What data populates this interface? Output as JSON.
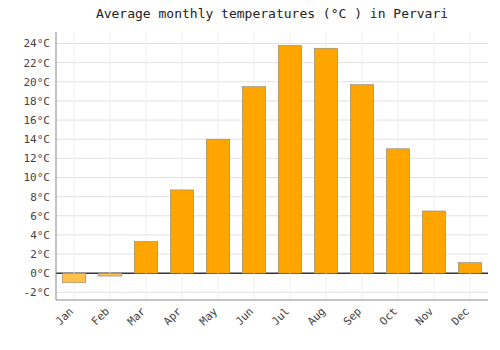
{
  "chart_data": {
    "type": "bar",
    "title": "Average monthly temperatures (°C ) in Pervari",
    "categories": [
      "Jan",
      "Feb",
      "Mar",
      "Apr",
      "May",
      "Jun",
      "Jul",
      "Aug",
      "Sep",
      "Oct",
      "Nov",
      "Dec"
    ],
    "values": [
      -1.0,
      -0.3,
      3.3,
      8.7,
      14.0,
      19.5,
      23.8,
      23.5,
      19.7,
      13.0,
      6.5,
      1.1
    ],
    "colors": [
      "#FFC04C",
      "#FFC04C",
      "#FFA500",
      "#FFA500",
      "#FFA500",
      "#FFA500",
      "#FFA500",
      "#FFA500",
      "#FFA500",
      "#FFA500",
      "#FFA500",
      "#FFA500"
    ],
    "ylim": [
      -2.8,
      25.2
    ],
    "yticks": [
      {
        "value": -2,
        "label": "-2°C"
      },
      {
        "value": 0,
        "label": "0°C"
      },
      {
        "value": 2,
        "label": "2°C"
      },
      {
        "value": 4,
        "label": "4°C"
      },
      {
        "value": 6,
        "label": "6°C"
      },
      {
        "value": 8,
        "label": "8°C"
      },
      {
        "value": 10,
        "label": "10°C"
      },
      {
        "value": 12,
        "label": "12°C"
      },
      {
        "value": 14,
        "label": "14°C"
      },
      {
        "value": 16,
        "label": "16°C"
      },
      {
        "value": 18,
        "label": "18°C"
      },
      {
        "value": 20,
        "label": "20°C"
      },
      {
        "value": 22,
        "label": "22°C"
      },
      {
        "value": 24,
        "label": "24°C"
      }
    ],
    "grid": true
  }
}
